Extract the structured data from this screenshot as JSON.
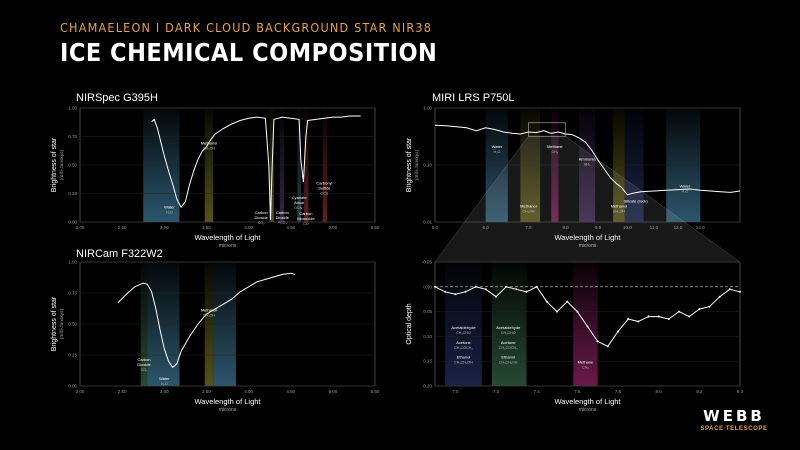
{
  "header": {
    "subtitle": "CHAMAELEON I DARK CLOUD BACKGROUND STAR NIR38",
    "title": "ICE CHEMICAL COMPOSITION"
  },
  "logo": {
    "main": "WEBB",
    "sub": "SPACE TELESCOPE"
  },
  "colors": {
    "curve": "#ffffff",
    "bg": "#000000",
    "accent": "#e6a43a",
    "blue": "#4a8fb4",
    "olive": "#8b8a26",
    "green": "#3f7a55",
    "magenta": "#b22a7c",
    "purple": "#5a3f7c",
    "yellowgreen": "#7f8a2e",
    "teal": "#3d6f86",
    "red": "#a3323d",
    "navy": "#2b3a78"
  },
  "chart_data": [
    {
      "id": "nirspec",
      "type": "line",
      "title": "NIRSpec G395H",
      "xlabel": "Wavelength of Light",
      "xunit": "microns",
      "ylabel": "Brightness of star",
      "yunit": "(milli-Janskys)",
      "xlim": [
        2.0,
        5.5
      ],
      "ylim": [
        0,
        1.0
      ],
      "xticks": [
        "2.00",
        "2.50",
        "3.00",
        "3.50",
        "4.00",
        "4.50",
        "5.00",
        "5.50"
      ],
      "yticks": [
        "0.00",
        "0.25",
        "0.50",
        "0.75",
        "1.00"
      ],
      "x": [
        2.85,
        2.88,
        2.92,
        2.96,
        3.0,
        3.05,
        3.1,
        3.15,
        3.2,
        3.25,
        3.3,
        3.35,
        3.4,
        3.45,
        3.5,
        3.55,
        3.6,
        3.7,
        3.8,
        3.9,
        4.0,
        4.1,
        4.2,
        4.24,
        4.26,
        4.28,
        4.3,
        4.35,
        4.4,
        4.5,
        4.6,
        4.62,
        4.65,
        4.68,
        4.7,
        4.8,
        4.9,
        5.0,
        5.1,
        5.2,
        5.3,
        5.33
      ],
      "y": [
        0.88,
        0.9,
        0.82,
        0.7,
        0.58,
        0.45,
        0.33,
        0.2,
        0.13,
        0.18,
        0.33,
        0.45,
        0.55,
        0.62,
        0.66,
        0.72,
        0.77,
        0.82,
        0.86,
        0.89,
        0.91,
        0.92,
        0.91,
        0.5,
        0.02,
        0.5,
        0.9,
        0.91,
        0.92,
        0.91,
        0.9,
        0.55,
        0.35,
        0.75,
        0.89,
        0.9,
        0.91,
        0.92,
        0.92,
        0.93,
        0.93,
        0.93
      ],
      "bands": [
        {
          "x": [
            2.75,
            3.18
          ],
          "color": "blue",
          "label": "Water",
          "formula": "H₂O",
          "lx": 3.06,
          "ly": 0.12
        },
        {
          "x": [
            3.48,
            3.58
          ],
          "color": "olive",
          "label": "Methanol",
          "formula": "CH₃OH",
          "lx": 3.53,
          "ly": 0.68
        },
        {
          "x": [
            4.25,
            4.3
          ],
          "color": "olive",
          "label": "Carbon Dioxide",
          "formula": "CO₂",
          "lx": 4.15,
          "ly": 0.07
        },
        {
          "x": [
            4.37,
            4.42
          ],
          "color": "purple",
          "label": "Carbon Dioxide",
          "formula": "¹³CO₂",
          "lx": 4.4,
          "ly": 0.07
        },
        {
          "x": [
            4.58,
            4.62
          ],
          "color": "teal",
          "label": "Cyanate Anion",
          "formula": "OCN⁻",
          "lx": 4.6,
          "ly": 0.2
        },
        {
          "x": [
            4.66,
            4.71
          ],
          "color": "red",
          "label": "Carbon Monoxide",
          "formula": "CO",
          "lx": 4.68,
          "ly": 0.06
        },
        {
          "x": [
            4.88,
            4.93
          ],
          "color": "red",
          "label": "Carbonyl Sulfide",
          "formula": "OCS",
          "lx": 4.9,
          "ly": 0.33
        }
      ]
    },
    {
      "id": "miri",
      "type": "line",
      "title": "MIRI LRS P750L",
      "xlabel": "Wavelength of Light",
      "xunit": "microns",
      "ylabel": "Brightness of star",
      "yunit": "(milli-Janskys)",
      "xscale": "log",
      "xlim": [
        5.0,
        15.0
      ],
      "ylim": [
        0.01,
        1.0
      ],
      "xticks": [
        "5.0",
        "6.0",
        "7.0",
        "8.0",
        "9.0",
        "10.0",
        "11.0",
        "12.0",
        "13.0"
      ],
      "yticks": [
        "0.01",
        "0.10",
        "1.00"
      ],
      "bands": [
        {
          "x": [
            6.0,
            6.5
          ],
          "color": "blue",
          "label": "Water",
          "formula": "H₂O",
          "lx": 6.25,
          "ly": 0.2
        },
        {
          "x": [
            6.8,
            7.3
          ],
          "color": "olive",
          "label": "Methanol",
          "formula": "CH₃OH",
          "lx": 7.0,
          "ly": 0.018
        },
        {
          "x": [
            7.6,
            7.8
          ],
          "color": "magenta",
          "label": "Methane",
          "formula": "CH₄",
          "lx": 7.7,
          "ly": 0.2
        },
        {
          "x": [
            8.4,
            8.9
          ],
          "color": "purple",
          "label": "Ammonia",
          "formula": "NH₃",
          "lx": 8.65,
          "ly": 0.12
        },
        {
          "x": [
            9.5,
            9.9
          ],
          "color": "olive",
          "label": "Methanol",
          "formula": "CH₃OH",
          "lx": 9.7,
          "ly": 0.018
        },
        {
          "x": [
            9.9,
            10.6
          ],
          "color": "navy",
          "label": "Silicate (rock)",
          "formula": "",
          "lx": 10.3,
          "ly": 0.022
        },
        {
          "x": [
            11.5,
            13.0
          ],
          "color": "blue",
          "label": "Water",
          "formula": "H₂O",
          "lx": 12.3,
          "ly": 0.04
        }
      ],
      "x": [
        5.0,
        5.2,
        5.4,
        5.6,
        5.8,
        6.0,
        6.2,
        6.4,
        6.6,
        6.8,
        7.0,
        7.2,
        7.4,
        7.6,
        7.8,
        8.0,
        8.2,
        8.4,
        8.6,
        8.8,
        9.0,
        9.2,
        9.4,
        9.6,
        9.8,
        10.0,
        10.2,
        10.5,
        11.0,
        11.5,
        12.0,
        12.5,
        13.0,
        13.5,
        14.0,
        14.5,
        15.0
      ],
      "y": [
        0.5,
        0.49,
        0.47,
        0.45,
        0.4,
        0.45,
        0.42,
        0.38,
        0.36,
        0.35,
        0.38,
        0.37,
        0.4,
        0.36,
        0.38,
        0.35,
        0.34,
        0.3,
        0.25,
        0.18,
        0.12,
        0.085,
        0.06,
        0.048,
        0.04,
        0.03,
        0.032,
        0.034,
        0.035,
        0.036,
        0.037,
        0.038,
        0.036,
        0.035,
        0.034,
        0.033,
        0.035
      ],
      "zoom_box": {
        "x": [
          7.0,
          8.0
        ],
        "y": [
          0.32,
          0.55
        ]
      }
    },
    {
      "id": "nircam",
      "type": "line",
      "title": "NIRCam F322W2",
      "xlabel": "Wavelength of Light",
      "xunit": "microns",
      "ylabel": "Brightness of star",
      "yunit": "(milli-Janskys)",
      "xlim": [
        2.0,
        5.5
      ],
      "ylim": [
        0,
        1.0
      ],
      "xticks": [
        "2.00",
        "2.50",
        "3.00",
        "3.50",
        "4.00",
        "4.50",
        "5.00",
        "5.50"
      ],
      "yticks": [
        "0.00",
        "0.25",
        "0.50",
        "0.75",
        "1.00"
      ],
      "x": [
        2.45,
        2.55,
        2.65,
        2.75,
        2.8,
        2.85,
        2.9,
        2.95,
        3.0,
        3.05,
        3.1,
        3.15,
        3.2,
        3.3,
        3.4,
        3.5,
        3.6,
        3.7,
        3.8,
        3.9,
        4.0,
        4.1,
        4.2,
        4.3,
        4.4,
        4.5,
        4.55
      ],
      "y": [
        0.67,
        0.74,
        0.8,
        0.83,
        0.82,
        0.76,
        0.62,
        0.45,
        0.3,
        0.2,
        0.15,
        0.18,
        0.28,
        0.4,
        0.5,
        0.58,
        0.62,
        0.66,
        0.7,
        0.76,
        0.8,
        0.84,
        0.86,
        0.88,
        0.9,
        0.91,
        0.9
      ],
      "bands": [
        {
          "x": [
            2.72,
            2.8
          ],
          "color": "green",
          "label": "Carbon Dioxide",
          "formula": "CO₂",
          "lx": 2.76,
          "ly": 0.2
        },
        {
          "x": [
            2.8,
            3.18
          ],
          "color": "blue",
          "label": "Water",
          "formula": "H₂O",
          "lx": 3.0,
          "ly": 0.05
        },
        {
          "x": [
            3.48,
            3.58
          ],
          "color": "olive",
          "label": "Methanol",
          "formula": "CH₃OH",
          "lx": 3.53,
          "ly": 0.6
        },
        {
          "x": [
            3.58,
            3.85
          ],
          "color": "blue",
          "label": "",
          "formula": "",
          "lx": 0,
          "ly": 0
        }
      ]
    },
    {
      "id": "depth",
      "type": "line",
      "title": "",
      "xlabel": "Wavelength of Light",
      "xunit": "microns",
      "ylabel": "Optical depth",
      "yunit": "",
      "xlim": [
        6.9,
        8.4
      ],
      "ylim": [
        0.2,
        -0.05
      ],
      "xticks": [
        "7.0",
        "7.2",
        "7.4",
        "7.6",
        "7.8",
        "8.0",
        "8.2",
        "8.4"
      ],
      "yticks": [
        "-0.05",
        "0.00",
        "0.05",
        "0.10",
        "0.15",
        "0.20"
      ],
      "baseline": 0.0,
      "x": [
        6.9,
        6.95,
        7.0,
        7.05,
        7.1,
        7.15,
        7.2,
        7.25,
        7.3,
        7.35,
        7.4,
        7.45,
        7.5,
        7.55,
        7.6,
        7.65,
        7.7,
        7.75,
        7.8,
        7.85,
        7.9,
        7.95,
        8.0,
        8.05,
        8.1,
        8.15,
        8.2,
        8.25,
        8.3,
        8.35,
        8.4
      ],
      "y": [
        0.0,
        0.01,
        0.015,
        0.01,
        0.0,
        0.005,
        0.02,
        0.0,
        0.005,
        0.01,
        0.0,
        0.03,
        0.05,
        0.03,
        0.05,
        0.08,
        0.11,
        0.12,
        0.09,
        0.065,
        0.07,
        0.06,
        0.06,
        0.065,
        0.05,
        0.06,
        0.045,
        0.04,
        0.02,
        0.005,
        0.01
      ],
      "bands": [
        {
          "x": [
            6.95,
            7.13
          ],
          "color": "navy",
          "label": "Acetaldehyde",
          "formula": "CH₃CHO",
          "lx": 7.04,
          "ly": 0.085,
          "extra": [
            [
              "Acetone",
              "CH₃COCH₃",
              0.115
            ],
            [
              "Ethanol",
              "CH₃CH₂OH",
              0.145
            ]
          ]
        },
        {
          "x": [
            7.18,
            7.35
          ],
          "color": "green",
          "label": "Acetaldehyde",
          "formula": "CH₃CHO",
          "lx": 7.26,
          "ly": 0.085,
          "extra": [
            [
              "Acetone",
              "CH₃COCH₃",
              0.115
            ],
            [
              "Ethanol",
              "CH₃CH₂OH",
              0.145
            ]
          ]
        },
        {
          "x": [
            7.58,
            7.7
          ],
          "color": "magenta",
          "label": "Methane",
          "formula": "CH₄",
          "lx": 7.64,
          "ly": 0.155
        }
      ]
    }
  ]
}
